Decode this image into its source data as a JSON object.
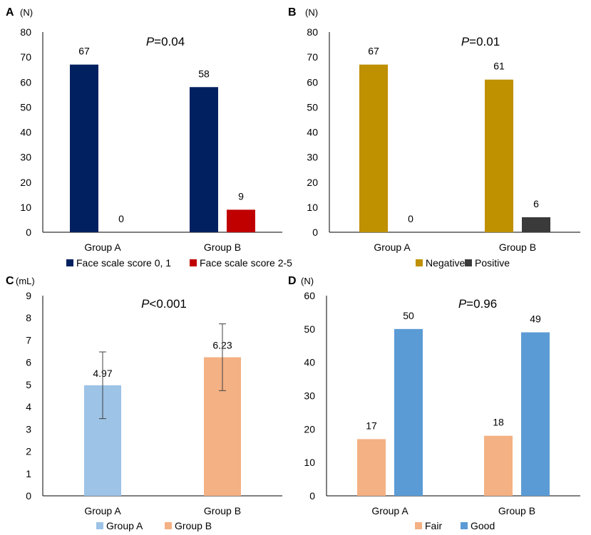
{
  "chart_data": [
    {
      "panel": "A",
      "type": "bar",
      "unit_label": "(N)",
      "annotation": {
        "prefix": "P",
        "value": "=0.04"
      },
      "categories": [
        "Group A",
        "Group B"
      ],
      "series": [
        {
          "name": "Face scale score 0, 1",
          "color": "#002060",
          "values": [
            67,
            58
          ]
        },
        {
          "name": "Face scale score 2-5",
          "color": "#C00000",
          "values": [
            0,
            9
          ]
        }
      ],
      "ylim": [
        0,
        80
      ],
      "yticks": [
        0,
        10,
        20,
        30,
        40,
        50,
        60,
        70,
        80
      ],
      "legend": "bottom"
    },
    {
      "panel": "B",
      "type": "bar",
      "unit_label": "(N)",
      "annotation": {
        "prefix": "P",
        "value": "=0.01"
      },
      "categories": [
        "Group A",
        "Group B"
      ],
      "series": [
        {
          "name": "Negative",
          "color": "#BF9000",
          "values": [
            67,
            61
          ]
        },
        {
          "name": "Positive",
          "color": "#3A3A3A",
          "values": [
            0,
            6
          ]
        }
      ],
      "ylim": [
        0,
        80
      ],
      "yticks": [
        0,
        10,
        20,
        30,
        40,
        50,
        60,
        70,
        80
      ],
      "legend": "bottom"
    },
    {
      "panel": "C",
      "type": "bar",
      "unit_label": "(mL)",
      "annotation": {
        "prefix": "P",
        "value": "<0.001"
      },
      "categories": [
        "Group A",
        "Group B"
      ],
      "series": [
        {
          "name": "Group A",
          "color": "#9DC3E6",
          "values": [
            4.97,
            null
          ]
        },
        {
          "name": "Group B",
          "color": "#F4B183",
          "values": [
            null,
            6.23
          ]
        }
      ],
      "labels": [
        "4.97",
        "6.23"
      ],
      "error_bars": [
        [
          3.47,
          6.47
        ],
        [
          4.73,
          7.73
        ]
      ],
      "ylim": [
        0,
        9
      ],
      "yticks": [
        0,
        1,
        2,
        3,
        4,
        5,
        6,
        7,
        8,
        9
      ],
      "legend": "bottom"
    },
    {
      "panel": "D",
      "type": "bar",
      "unit_label": "(N)",
      "annotation": {
        "prefix": "P",
        "value": "=0.96"
      },
      "categories": [
        "Group A",
        "Group B"
      ],
      "series": [
        {
          "name": "Fair",
          "color": "#F4B183",
          "values": [
            17,
            18
          ]
        },
        {
          "name": "Good",
          "color": "#5B9BD5",
          "values": [
            50,
            49
          ]
        }
      ],
      "ylim": [
        0,
        60
      ],
      "yticks": [
        0,
        10,
        20,
        30,
        40,
        50,
        60
      ],
      "legend": "bottom"
    }
  ]
}
